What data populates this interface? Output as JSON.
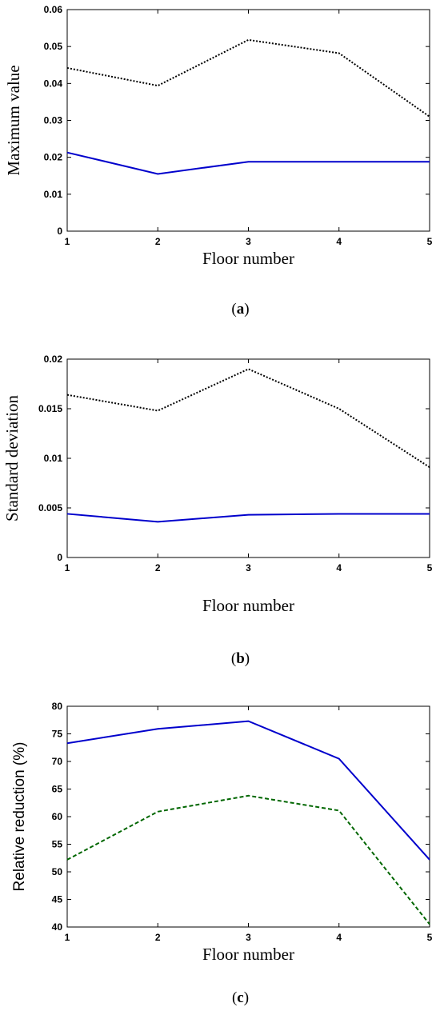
{
  "chart_data": [
    {
      "type": "line",
      "caption": "a",
      "xlabel": "Floor number",
      "ylabel": "Maximum value",
      "x": [
        1,
        2,
        3,
        4,
        5
      ],
      "xlim": [
        1,
        5
      ],
      "ylim": [
        0,
        0.06
      ],
      "xticks": [
        "1",
        "2",
        "3",
        "4",
        "5"
      ],
      "yticks": [
        "0",
        "0.01",
        "0.02",
        "0.03",
        "0.04",
        "0.05",
        "0.06"
      ],
      "grid": false,
      "series": [
        {
          "values": [
            0.0442,
            0.0394,
            0.0518,
            0.0482,
            0.031
          ],
          "color": "#000000",
          "style": "dotted"
        },
        {
          "values": [
            0.0213,
            0.0155,
            0.0188,
            0.0188,
            0.0188
          ],
          "color": "#0000cc",
          "style": "solid"
        }
      ]
    },
    {
      "type": "line",
      "caption": "b",
      "xlabel": "Floor number",
      "ylabel": "Standard deviation",
      "x": [
        1,
        2,
        3,
        4,
        5
      ],
      "xlim": [
        1,
        5
      ],
      "ylim": [
        0,
        0.02
      ],
      "xticks": [
        "1",
        "2",
        "3",
        "4",
        "5"
      ],
      "yticks": [
        "0",
        "0.005",
        "0.01",
        "0.015",
        "0.02"
      ],
      "grid": false,
      "series": [
        {
          "values": [
            0.0164,
            0.0148,
            0.019,
            0.015,
            0.0091
          ],
          "color": "#000000",
          "style": "dotted"
        },
        {
          "values": [
            0.0044,
            0.0036,
            0.0043,
            0.0044,
            0.0044
          ],
          "color": "#0000cc",
          "style": "solid"
        }
      ]
    },
    {
      "type": "line",
      "caption": "c",
      "xlabel": "Floor number",
      "ylabel": "Relative reduction (%)",
      "x": [
        1,
        2,
        3,
        4,
        5
      ],
      "xlim": [
        1,
        5
      ],
      "ylim": [
        40,
        80
      ],
      "xticks": [
        "1",
        "2",
        "3",
        "4",
        "5"
      ],
      "yticks": [
        "40",
        "45",
        "50",
        "55",
        "60",
        "65",
        "70",
        "75",
        "80"
      ],
      "grid": false,
      "series": [
        {
          "values": [
            73.3,
            75.9,
            77.3,
            70.5,
            52.2
          ],
          "color": "#0000cc",
          "style": "solid"
        },
        {
          "values": [
            52.2,
            60.9,
            63.8,
            61.1,
            40.5
          ],
          "color": "#006600",
          "style": "dashed"
        }
      ]
    }
  ]
}
